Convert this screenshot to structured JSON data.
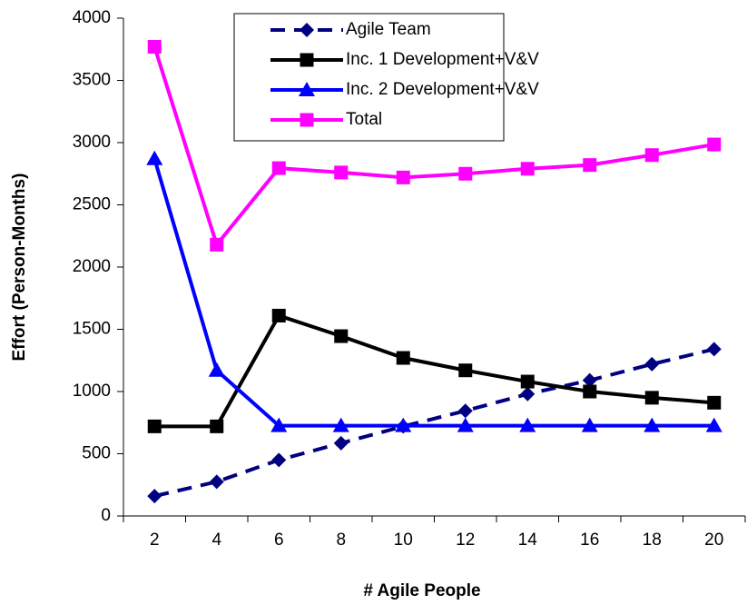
{
  "chart_data": {
    "type": "line",
    "x_label": "# Agile People",
    "y_label": "Effort (Person-Months)",
    "categories": [
      "2",
      "4",
      "6",
      "8",
      "10",
      "12",
      "14",
      "16",
      "18",
      "20"
    ],
    "series": [
      {
        "name": "Agile Team",
        "color": "#000080",
        "dash": true,
        "marker": "diamond",
        "values": [
          160,
          275,
          450,
          585,
          720,
          845,
          980,
          1090,
          1220,
          1340
        ]
      },
      {
        "name": "Inc. 1 Development+V&V",
        "color": "#000000",
        "dash": false,
        "marker": "square",
        "values": [
          720,
          720,
          1610,
          1445,
          1270,
          1170,
          1080,
          1000,
          950,
          910
        ]
      },
      {
        "name": "Inc. 2 Development+V&V",
        "color": "#0000ff",
        "dash": false,
        "marker": "triangle",
        "values": [
          2870,
          1170,
          725,
          725,
          725,
          725,
          725,
          725,
          725,
          725
        ]
      },
      {
        "name": "Total",
        "color": "#ff00ff",
        "dash": false,
        "marker": "square",
        "values": [
          3770,
          2180,
          2795,
          2760,
          2720,
          2750,
          2790,
          2820,
          2900,
          2985
        ]
      }
    ],
    "ylim": [
      0,
      4000
    ],
    "yticks": [
      0,
      500,
      1000,
      1500,
      2000,
      2500,
      3000,
      3500,
      4000
    ],
    "grid": false,
    "legend": "top"
  }
}
